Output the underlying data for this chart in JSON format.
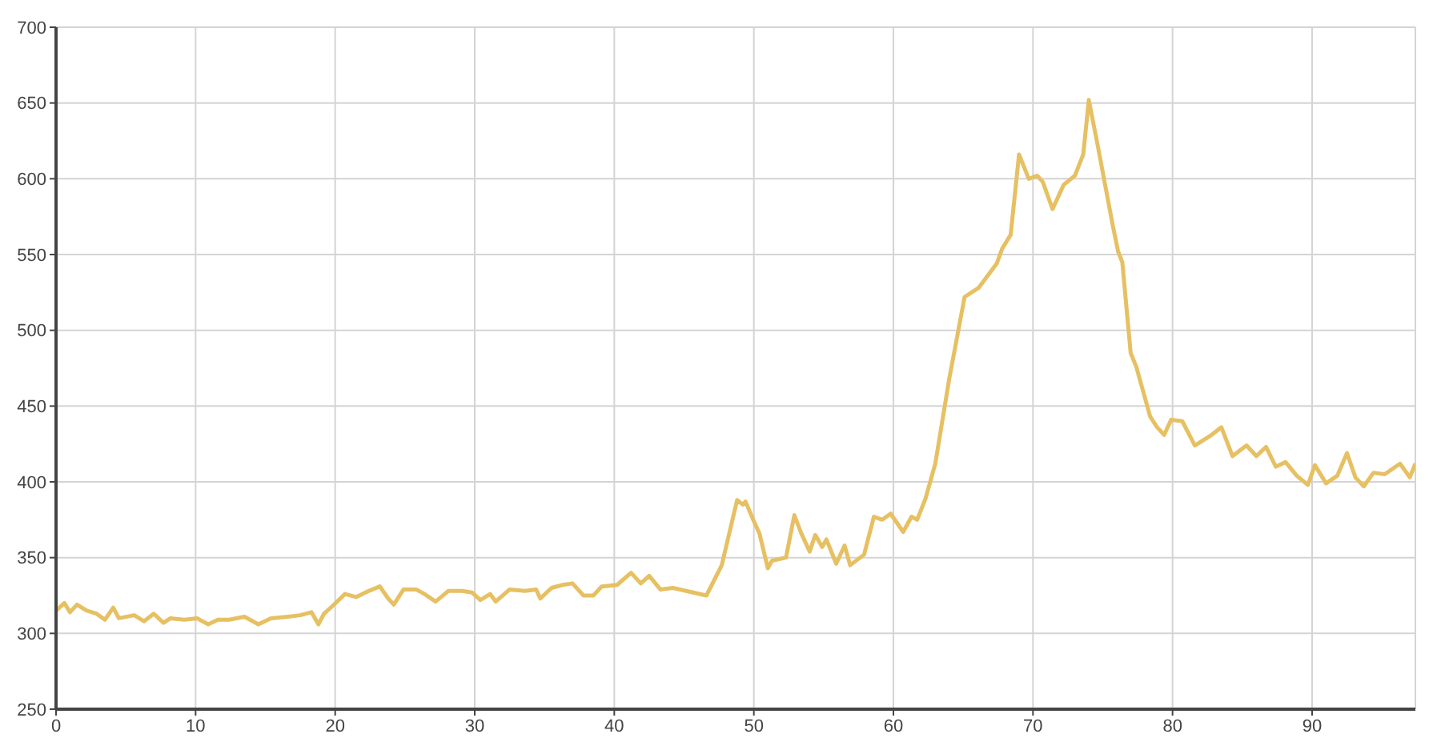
{
  "chart_data": {
    "type": "line",
    "xlim": [
      0,
      97.4
    ],
    "ylim": [
      250,
      700
    ],
    "xticks": [
      0,
      10,
      20,
      30,
      40,
      50,
      60,
      70,
      80,
      90
    ],
    "yticks": [
      250,
      300,
      350,
      400,
      450,
      500,
      550,
      600,
      650,
      700
    ],
    "grid": true,
    "marker": "none",
    "line_style": "solid",
    "series": [
      {
        "color": "#e6c062",
        "x": [
          0,
          0.6,
          1.0,
          1.5,
          2.2,
          2.9,
          3.5,
          4.1,
          4.5,
          5.6,
          6.3,
          7.0,
          7.7,
          8.2,
          9.2,
          10.1,
          10.9,
          11.6,
          12.4,
          13.5,
          14.5,
          15.4,
          16.6,
          17.5,
          18.3,
          18.8,
          19.2,
          19.8,
          20.7,
          21.5,
          22.4,
          23.2,
          23.8,
          24.2,
          24.9,
          25.8,
          26.4,
          27.2,
          28.1,
          29.1,
          29.8,
          30.4,
          31.1,
          31.5,
          32.5,
          33.6,
          34.4,
          34.7,
          35.5,
          36.3,
          37.0,
          37.8,
          38.5,
          39.1,
          40.2,
          41.2,
          41.9,
          42.5,
          43.3,
          44.2,
          46.6,
          47.7,
          48.8,
          49.2,
          49.4,
          50.0,
          50.4,
          51.0,
          51.3,
          52.3,
          52.9,
          53.4,
          54.0,
          54.4,
          54.9,
          55.2,
          55.9,
          56.5,
          56.9,
          57.9,
          58.6,
          59.2,
          59.8,
          60.7,
          61.3,
          61.7,
          62.3,
          63.0,
          64.0,
          65.1,
          66.1,
          67.4,
          67.8,
          68.4,
          69.0,
          69.7,
          70.3,
          70.7,
          71.4,
          72.2,
          73.0,
          73.6,
          74.0,
          74.7,
          75.7,
          76.1,
          76.4,
          77.0,
          77.4,
          78.4,
          78.9,
          79.4,
          79.9,
          80.7,
          81.6,
          82.8,
          83.5,
          84.3,
          85.3,
          86.0,
          86.7,
          87.4,
          88.1,
          88.9,
          89.7,
          90.2,
          91.0,
          91.8,
          92.5,
          93.1,
          93.7,
          94.4,
          95.2,
          96.3,
          97.0,
          97.4
        ],
        "values": [
          315,
          320,
          314,
          319,
          315,
          313,
          309,
          317,
          310,
          312,
          308,
          313,
          307,
          310,
          309,
          310,
          306,
          309,
          309,
          311,
          306,
          310,
          311,
          312,
          314,
          306,
          313,
          318,
          326,
          324,
          328,
          331,
          323,
          319,
          329,
          329,
          326,
          321,
          328,
          328,
          327,
          322,
          326,
          321,
          329,
          328,
          329,
          323,
          330,
          332,
          333,
          325,
          325,
          331,
          332,
          340,
          333,
          338,
          329,
          330,
          325,
          345,
          388,
          385,
          387,
          374,
          366,
          343,
          348,
          350,
          378,
          366,
          354,
          365,
          357,
          362,
          346,
          358,
          345,
          352,
          377,
          375,
          379,
          367,
          377,
          375,
          389,
          412,
          468,
          522,
          528,
          544,
          554,
          563,
          616,
          600,
          602,
          598,
          580,
          596,
          602,
          616,
          652,
          619,
          570,
          552,
          545,
          485,
          476,
          443,
          436,
          431,
          441,
          440,
          424,
          431,
          436,
          417,
          424,
          417,
          423,
          410,
          413,
          404,
          398,
          411,
          399,
          404,
          419,
          403,
          397,
          406,
          405,
          412,
          403,
          412
        ]
      }
    ]
  }
}
